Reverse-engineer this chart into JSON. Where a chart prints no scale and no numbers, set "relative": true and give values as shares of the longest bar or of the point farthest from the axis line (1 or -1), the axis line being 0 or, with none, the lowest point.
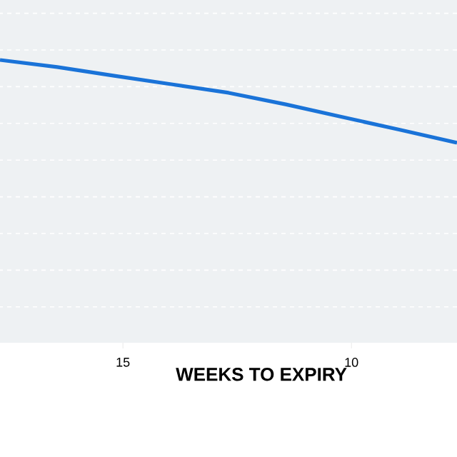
{
  "chart_data": {
    "type": "line",
    "relative": true,
    "xlabel": "WEEKS TO EXPIRY",
    "x": [
      17.69,
      16.44,
      15.19,
      13.94,
      12.69,
      11.44,
      10.19,
      8.94,
      7.69
    ],
    "values": [
      1,
      0.975,
      0.944,
      0.914,
      0.884,
      0.843,
      0.798,
      0.753,
      0.707
    ],
    "color": "#1a73d8",
    "xlim": [
      17.69,
      7.69
    ],
    "xticks": [
      15,
      10
    ],
    "grid": "y",
    "marker": "none",
    "line_style": "solid"
  }
}
